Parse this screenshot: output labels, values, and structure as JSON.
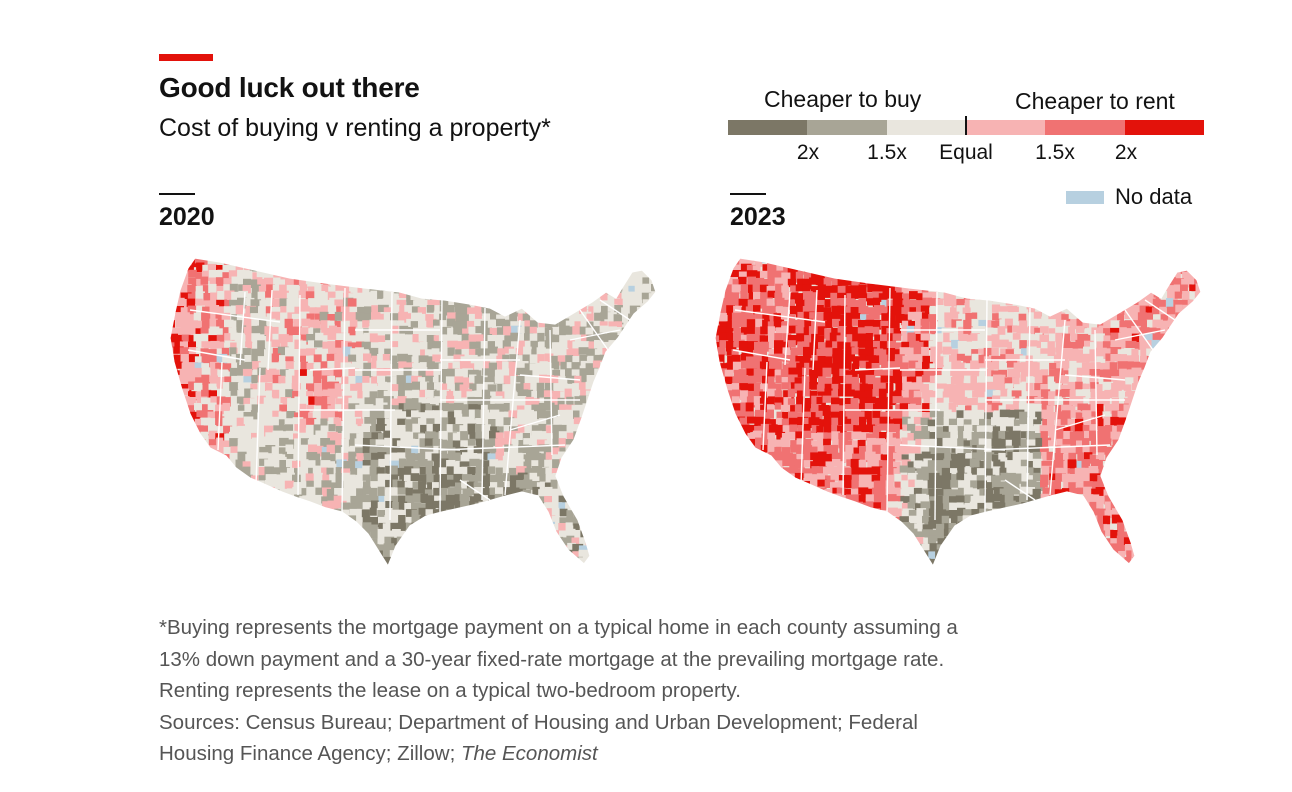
{
  "header": {
    "title": "Good luck out there",
    "subtitle": "Cost of buying v renting a property*"
  },
  "legend": {
    "left_heading": "Cheaper to buy",
    "right_heading": "Cheaper to rent",
    "scale_colors": [
      "#7c7766",
      "#a8a596",
      "#e9e6de",
      "#f7b3b3",
      "#f07272",
      "#e3120b"
    ],
    "ticks": [
      "2x",
      "1.5x",
      "Equal",
      "1.5x",
      "2x"
    ],
    "no_data_label": "No data",
    "no_data_color": "#b7d0e0"
  },
  "panels": [
    {
      "year": "2020",
      "description": "County choropleth of the contiguous United States; mostly cheaper to buy, pink pockets in the West"
    },
    {
      "year": "2023",
      "description": "County choropleth of the contiguous United States; mostly cheaper to rent, strongest in the West and Southeast"
    }
  ],
  "footnote": {
    "lines": [
      "*Buying represents the mortgage payment on a typical home in each county assuming a",
      "13% down payment and a 30-year fixed-rate mortgage at the prevailing mortgage rate.",
      "Renting represents the lease on a typical two-bedroom property.",
      "Sources: Census Bureau; Department of Housing and Urban Development; Federal"
    ],
    "last_line_prefix": "Housing Finance Agency; Zillow; ",
    "last_line_source": "The Economist"
  }
}
